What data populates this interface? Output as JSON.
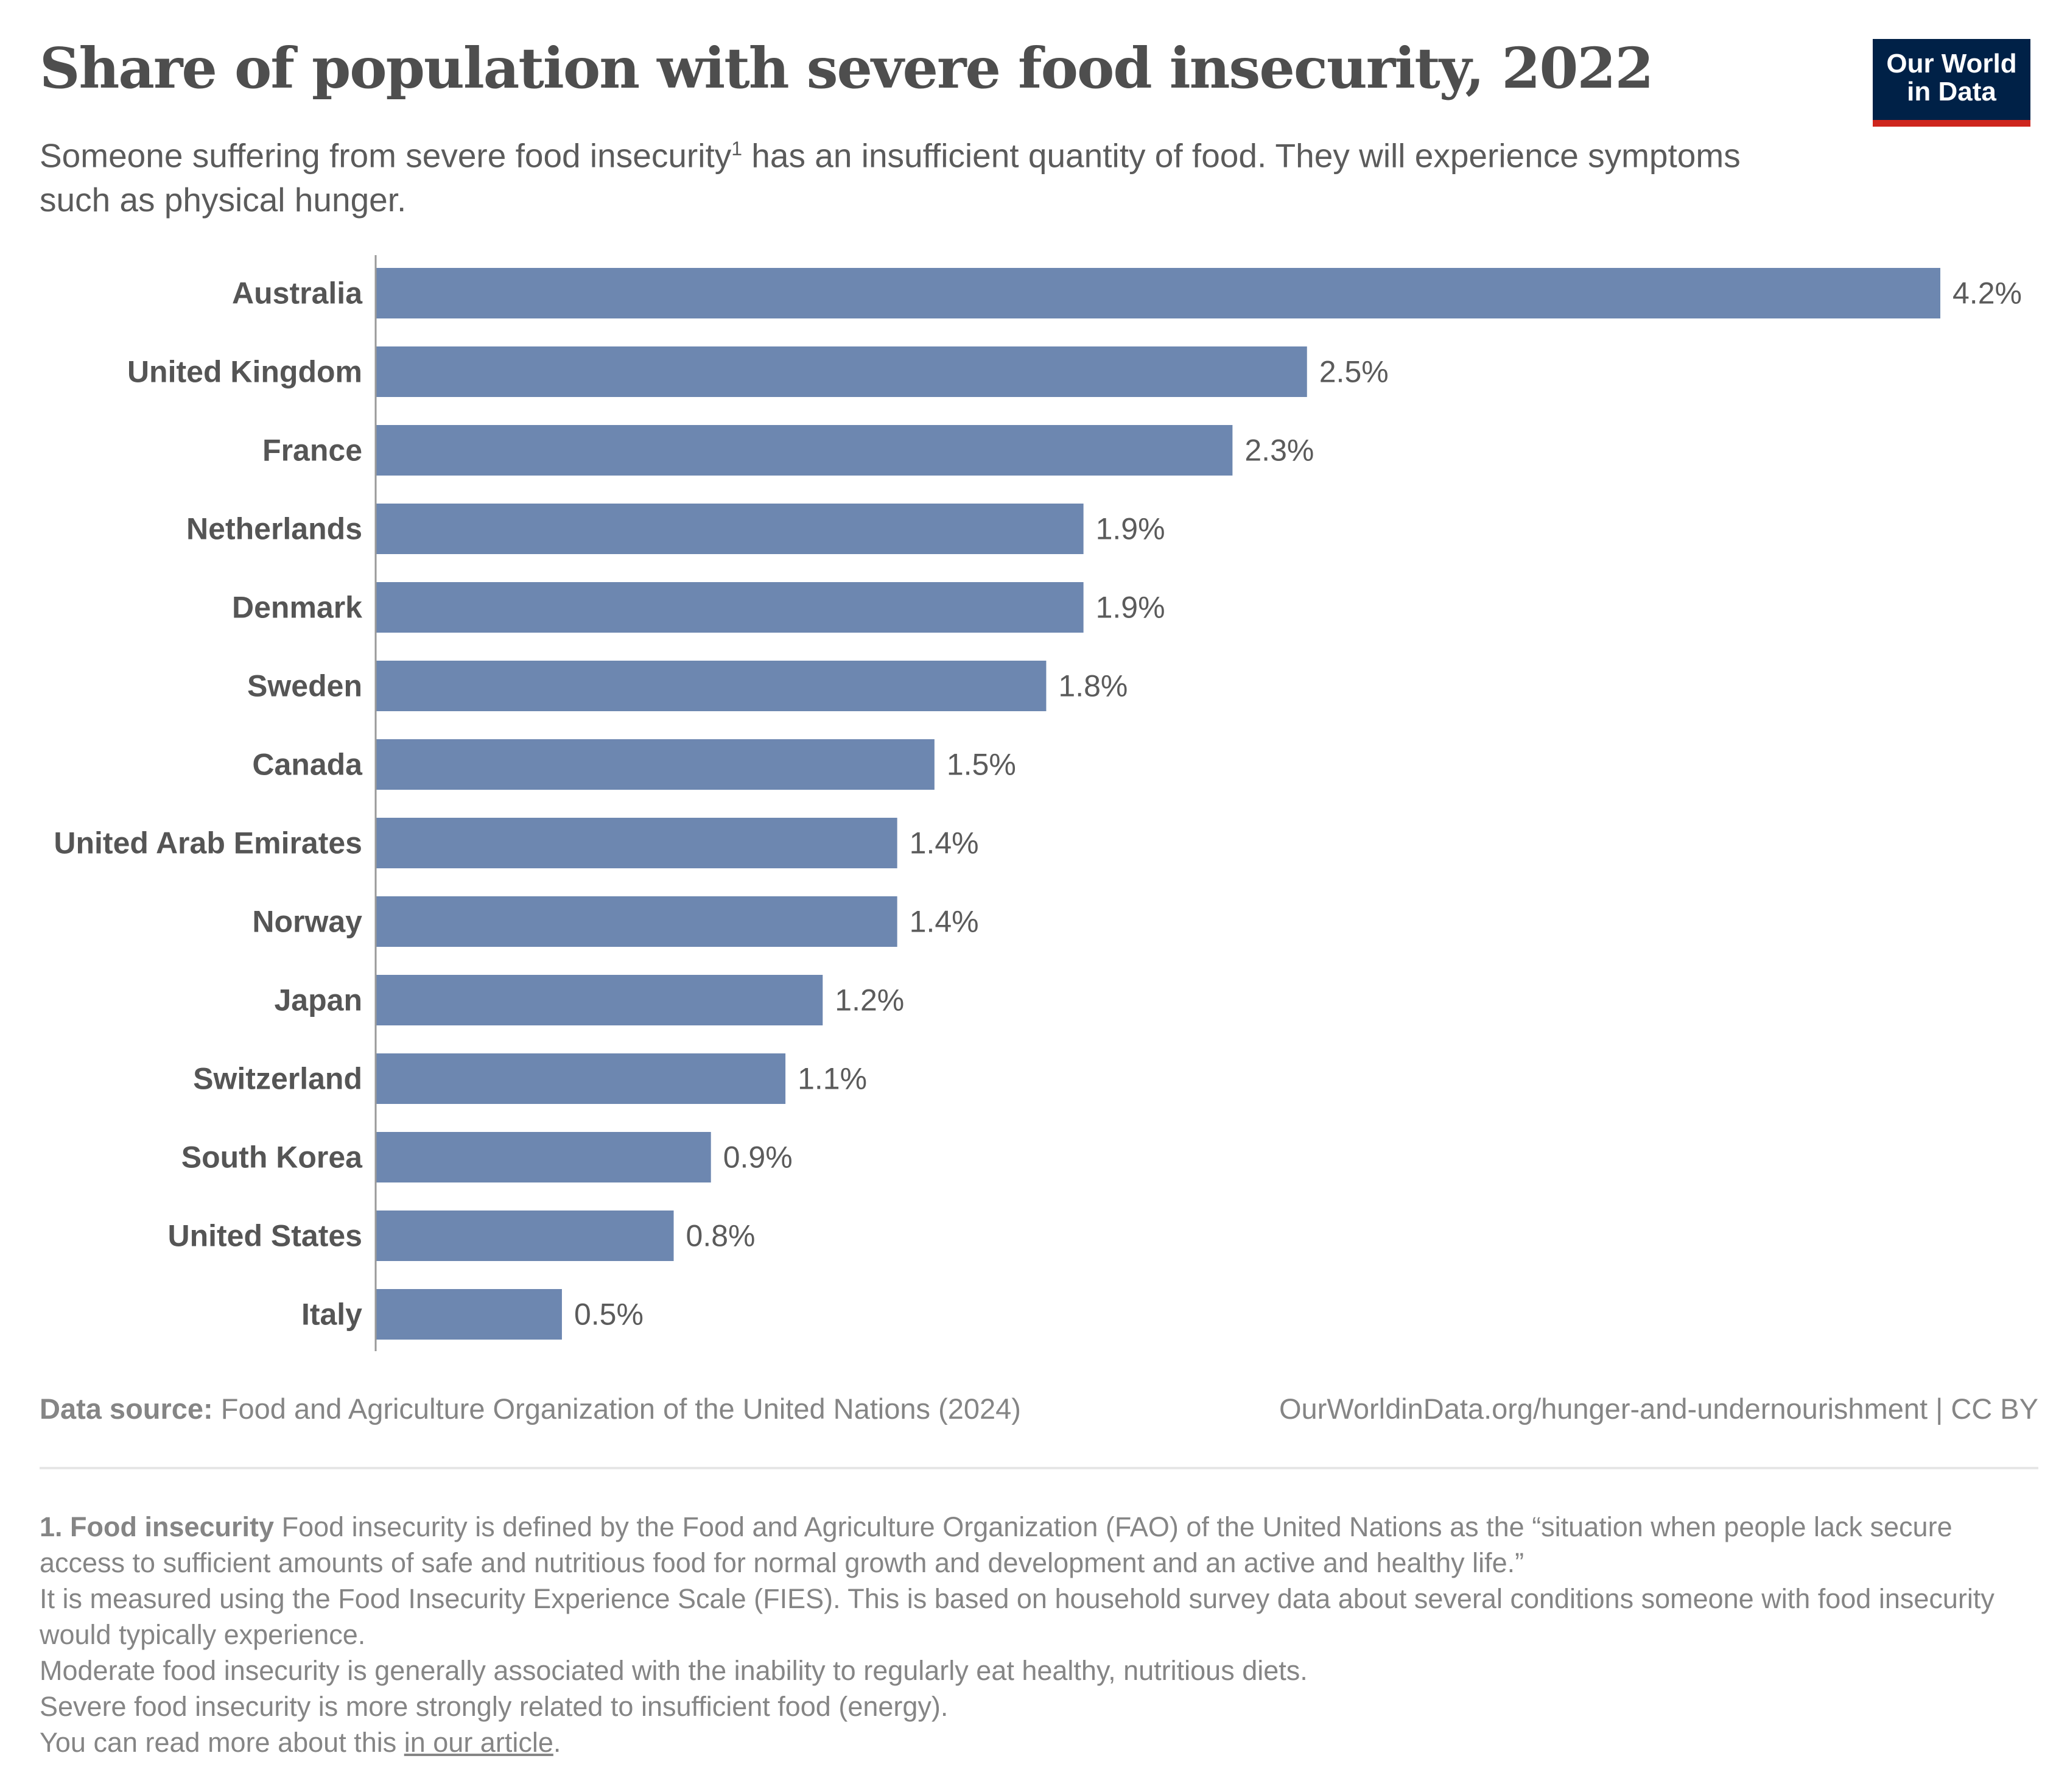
{
  "header": {
    "title": "Share of population with severe food insecurity, 2022",
    "subtitle_part1": "Someone suffering from severe food insecurity",
    "subtitle_sup": "1",
    "subtitle_part2": " has an insufficient quantity of food. They will experience symptoms such as physical hunger.",
    "logo_line1": "Our World",
    "logo_line2": "in Data"
  },
  "chart_data": {
    "type": "bar",
    "orientation": "horizontal",
    "title": "Share of population with severe food insecurity, 2022",
    "categories": [
      "Australia",
      "United Kingdom",
      "France",
      "Netherlands",
      "Denmark",
      "Sweden",
      "Canada",
      "United Arab Emirates",
      "Norway",
      "Japan",
      "Switzerland",
      "South Korea",
      "United States",
      "Italy"
    ],
    "values": [
      4.2,
      2.5,
      2.3,
      1.9,
      1.9,
      1.8,
      1.5,
      1.4,
      1.4,
      1.2,
      1.1,
      0.9,
      0.8,
      0.5
    ],
    "labels": [
      "4.2%",
      "2.5%",
      "2.3%",
      "1.9%",
      "1.9%",
      "1.8%",
      "1.5%",
      "1.4%",
      "1.4%",
      "1.2%",
      "1.1%",
      "0.9%",
      "0.8%",
      "0.5%"
    ],
    "unit": "%",
    "xlim": [
      0,
      4.2
    ],
    "color": "#6d87b0",
    "grid": false
  },
  "footer": {
    "source_label": "Data source:",
    "source_text": " Food and Agriculture Organization of the United Nations (2024)",
    "url": "OurWorldinData.org/hunger-and-undernourishment | CC BY"
  },
  "notes": {
    "heading": "1. Food insecurity",
    "p1": " Food insecurity is defined by the Food and Agriculture Organization (FAO) of the United Nations as the “situation when people lack secure access to sufficient amounts of safe and nutritious food for normal growth and development and an active and healthy life.”",
    "p2": "It is measured using the Food Insecurity Experience Scale (FIES). This is based on household survey data about several conditions someone with food insecurity would typically experience.",
    "p3": "Moderate food insecurity is generally associated with the inability to regularly eat healthy, nutritious diets.",
    "p4": "Severe food insecurity is more strongly related to insufficient food (energy).",
    "p5_prefix": "You can read more about this ",
    "p5_link": "in our article",
    "p5_suffix": "."
  }
}
